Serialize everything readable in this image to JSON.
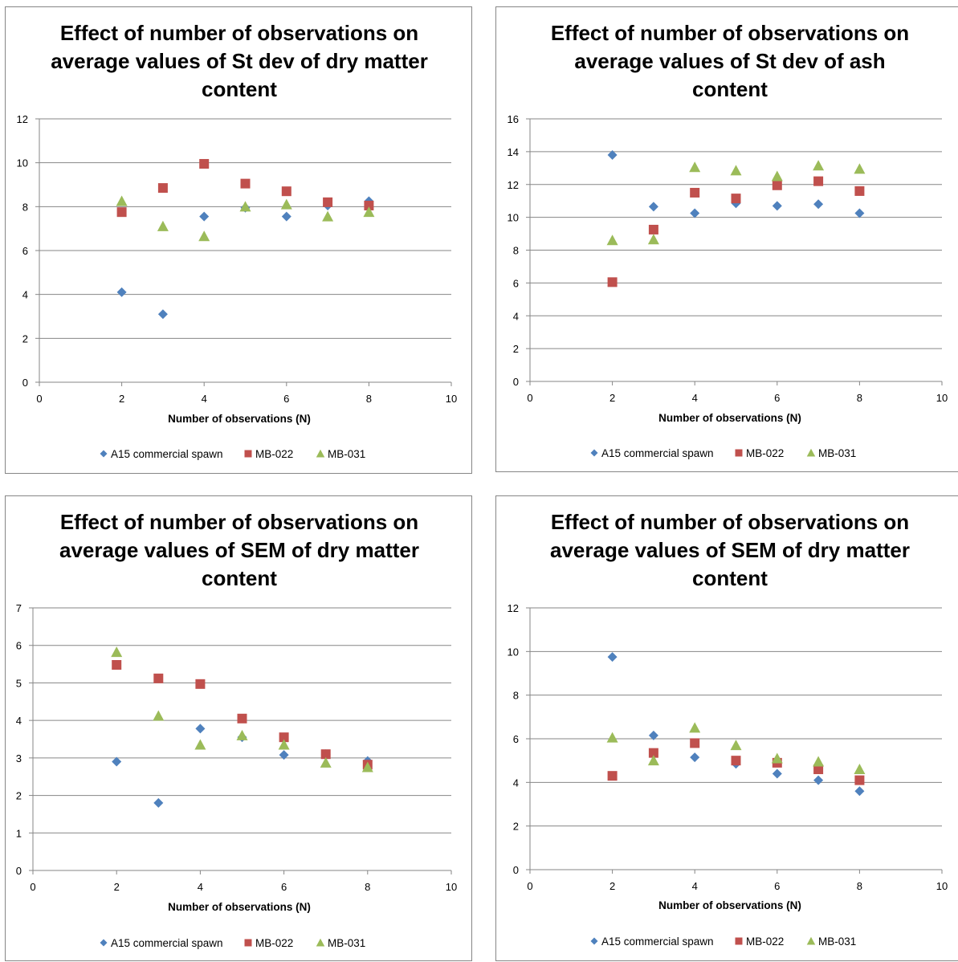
{
  "chart_data": [
    {
      "type": "scatter",
      "title_lines": [
        "Effect of number of observations on",
        "average values of St dev of dry matter",
        "content"
      ],
      "xlabel": "Number of observations  (N)",
      "ylabel": "",
      "xlim": [
        0,
        10
      ],
      "ylim": [
        0,
        12
      ],
      "xticks": [
        "0",
        "2",
        "4",
        "6",
        "8",
        "10"
      ],
      "yticks": [
        "0",
        "2",
        "4",
        "6",
        "8",
        "10",
        "12"
      ],
      "grid": "horizontal",
      "legend_position": "bottom",
      "series": [
        {
          "name": "A15 commercial spawn",
          "marker": "diamond",
          "color": "#4F81BD",
          "x": [
            2,
            3,
            4,
            5,
            6,
            7,
            8
          ],
          "y": [
            4.1,
            3.1,
            7.55,
            7.95,
            7.55,
            8.05,
            8.25
          ]
        },
        {
          "name": "MB-022",
          "marker": "square",
          "color": "#C0504D",
          "x": [
            2,
            3,
            4,
            5,
            6,
            7,
            8
          ],
          "y": [
            7.75,
            8.85,
            9.95,
            9.05,
            8.7,
            8.2,
            8.05
          ]
        },
        {
          "name": "MB-031",
          "marker": "triangle",
          "color": "#9BBB59",
          "x": [
            2,
            3,
            4,
            5,
            6,
            7,
            8
          ],
          "y": [
            8.25,
            7.1,
            6.65,
            8.0,
            8.1,
            7.55,
            7.75
          ]
        }
      ]
    },
    {
      "type": "scatter",
      "title_lines": [
        "Effect of number of observations on",
        "average values of St dev of ash",
        "content"
      ],
      "xlabel": "Number of observations  (N)",
      "ylabel": "",
      "xlim": [
        0,
        10
      ],
      "ylim": [
        0,
        16
      ],
      "xticks": [
        "0",
        "2",
        "4",
        "6",
        "8",
        "10"
      ],
      "yticks": [
        "0",
        "2",
        "4",
        "6",
        "8",
        "10",
        "12",
        "14",
        "16"
      ],
      "grid": "horizontal",
      "legend_position": "bottom",
      "series": [
        {
          "name": "A15 commercial spawn",
          "marker": "diamond",
          "color": "#4F81BD",
          "x": [
            2,
            3,
            4,
            5,
            6,
            7,
            8
          ],
          "y": [
            13.8,
            10.65,
            10.25,
            10.85,
            10.7,
            10.8,
            10.25
          ]
        },
        {
          "name": "MB-022",
          "marker": "square",
          "color": "#C0504D",
          "x": [
            2,
            3,
            4,
            5,
            6,
            7,
            8
          ],
          "y": [
            6.05,
            9.25,
            11.5,
            11.15,
            11.95,
            12.2,
            11.6
          ]
        },
        {
          "name": "MB-031",
          "marker": "triangle",
          "color": "#9BBB59",
          "x": [
            2,
            3,
            4,
            5,
            6,
            7,
            8
          ],
          "y": [
            8.6,
            8.65,
            13.05,
            12.85,
            12.5,
            13.15,
            12.95
          ]
        }
      ]
    },
    {
      "type": "scatter",
      "title_lines": [
        "Effect of number of observations on",
        "average values of SEM of dry matter",
        "content"
      ],
      "xlabel": "Number of observations  (N)",
      "ylabel": "",
      "xlim": [
        0,
        10
      ],
      "ylim": [
        0,
        7
      ],
      "xticks": [
        "0",
        "2",
        "4",
        "6",
        "8",
        "10"
      ],
      "yticks": [
        "0",
        "1",
        "2",
        "3",
        "4",
        "5",
        "6",
        "7"
      ],
      "grid": "horizontal",
      "legend_position": "bottom",
      "series": [
        {
          "name": "A15 commercial spawn",
          "marker": "diamond",
          "color": "#4F81BD",
          "x": [
            2,
            3,
            4,
            5,
            6,
            7,
            8
          ],
          "y": [
            2.9,
            1.8,
            3.78,
            3.55,
            3.08,
            3.1,
            2.92
          ]
        },
        {
          "name": "MB-022",
          "marker": "square",
          "color": "#C0504D",
          "x": [
            2,
            3,
            4,
            5,
            6,
            7,
            8
          ],
          "y": [
            5.48,
            5.12,
            4.97,
            4.05,
            3.55,
            3.1,
            2.82
          ]
        },
        {
          "name": "MB-031",
          "marker": "triangle",
          "color": "#9BBB59",
          "x": [
            2,
            3,
            4,
            5,
            6,
            7,
            8
          ],
          "y": [
            5.82,
            4.12,
            3.35,
            3.6,
            3.35,
            2.87,
            2.75
          ]
        }
      ]
    },
    {
      "type": "scatter",
      "title_lines": [
        "Effect of number of observations on",
        "average values of SEM of dry matter",
        "content"
      ],
      "xlabel": "Number of observations  (N)",
      "ylabel": "",
      "xlim": [
        0,
        10
      ],
      "ylim": [
        0,
        12
      ],
      "xticks": [
        "0",
        "2",
        "4",
        "6",
        "8",
        "10"
      ],
      "yticks": [
        "0",
        "2",
        "4",
        "6",
        "8",
        "10",
        "12"
      ],
      "grid": "horizontal",
      "legend_position": "bottom",
      "series": [
        {
          "name": "A15 commercial spawn",
          "marker": "diamond",
          "color": "#4F81BD",
          "x": [
            2,
            3,
            4,
            5,
            6,
            7,
            8
          ],
          "y": [
            9.75,
            6.15,
            5.15,
            4.85,
            4.4,
            4.1,
            3.6
          ]
        },
        {
          "name": "MB-022",
          "marker": "square",
          "color": "#C0504D",
          "x": [
            2,
            3,
            4,
            5,
            6,
            7,
            8
          ],
          "y": [
            4.3,
            5.35,
            5.8,
            5.0,
            4.9,
            4.6,
            4.1
          ]
        },
        {
          "name": "MB-031",
          "marker": "triangle",
          "color": "#9BBB59",
          "x": [
            2,
            3,
            4,
            5,
            6,
            7,
            8
          ],
          "y": [
            6.05,
            5.0,
            6.5,
            5.7,
            5.1,
            4.95,
            4.6
          ]
        }
      ]
    }
  ]
}
